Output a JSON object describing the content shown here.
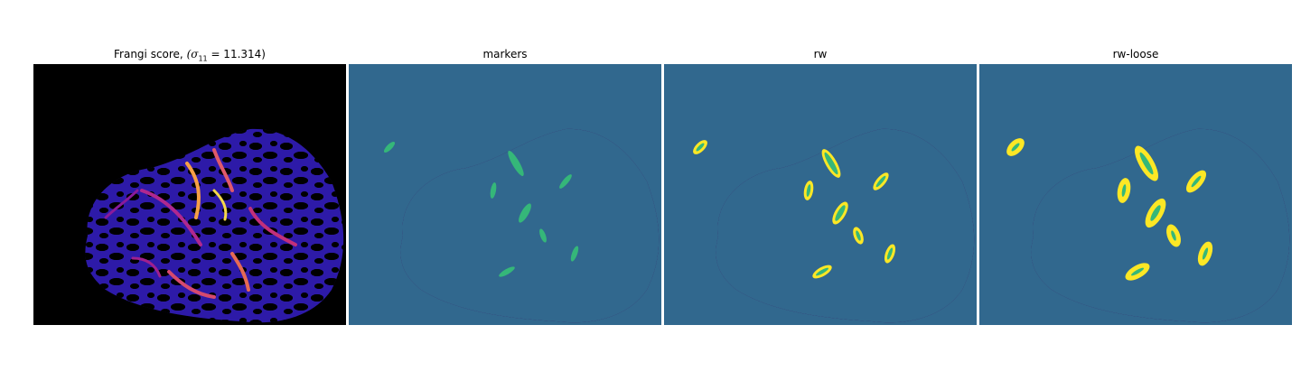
{
  "figure": {
    "panels": [
      {
        "key": "frangi",
        "title_text": "Frangi score, ",
        "title_math": "(σ",
        "title_sub": "11",
        "title_value": " = 11.314)"
      },
      {
        "key": "markers",
        "title": "markers"
      },
      {
        "key": "rw",
        "title": "rw"
      },
      {
        "key": "rwloose",
        "title": "rw-loose"
      }
    ]
  },
  "colors": {
    "background_black": "#000000",
    "tissue_purple": "#440154",
    "label_teal": "#31688e",
    "marker_green": "#35b779",
    "vessel_yellow": "#fde725",
    "frangi_low": "#2d1aa8",
    "frangi_high": "#f6d84a"
  }
}
